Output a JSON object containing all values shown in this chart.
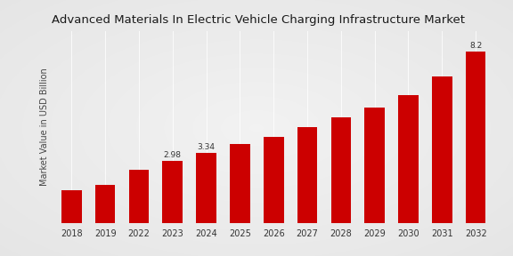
{
  "title": "Advanced Materials In Electric Vehicle Charging Infrastructure Market",
  "ylabel": "Market Value in USD Billion",
  "categories": [
    "2018",
    "2019",
    "2022",
    "2023",
    "2024",
    "2025",
    "2026",
    "2027",
    "2028",
    "2029",
    "2030",
    "2031",
    "2032"
  ],
  "values": [
    1.55,
    1.8,
    2.55,
    2.98,
    3.34,
    3.78,
    4.12,
    4.58,
    5.05,
    5.52,
    6.1,
    7.0,
    8.2
  ],
  "bar_color": "#cc0000",
  "background_color_top": "#d8d8d8",
  "background_color_mid": "#f0f0f0",
  "background_color_bottom": "#d8d8d8",
  "annotated": {
    "2023": "2.98",
    "2024": "3.34",
    "2032": "8.2"
  },
  "ylim": [
    0,
    9.2
  ],
  "title_fontsize": 9.5,
  "label_fontsize": 7,
  "tick_fontsize": 7,
  "annotation_fontsize": 6.5
}
